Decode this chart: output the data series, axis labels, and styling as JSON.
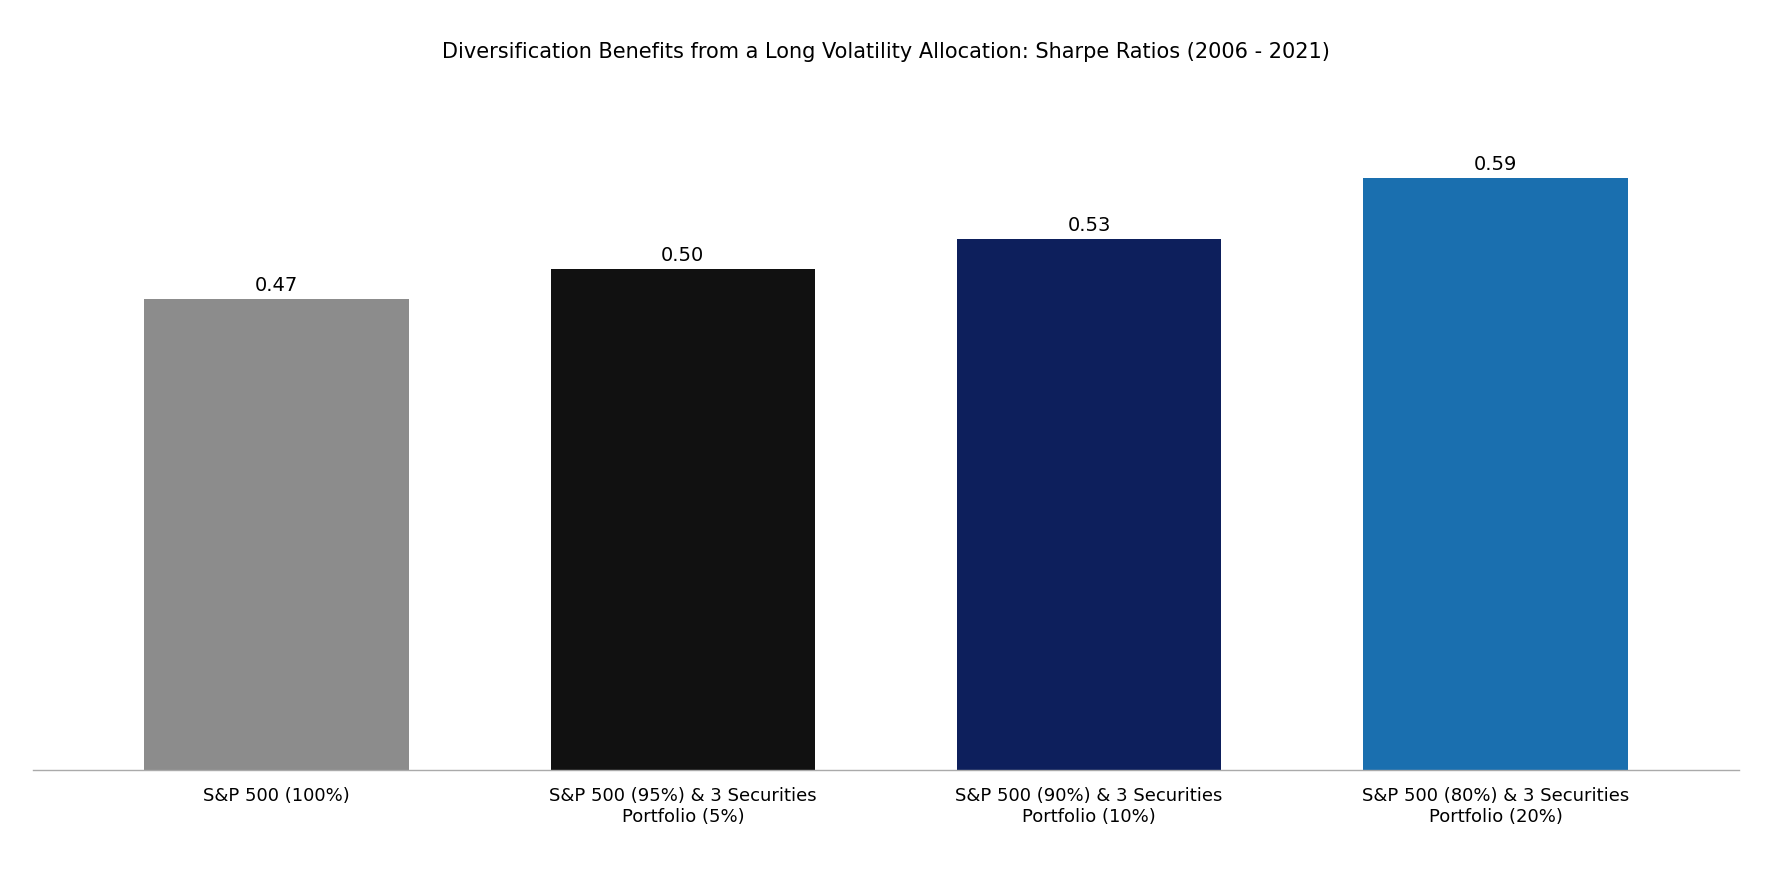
{
  "title": "Diversification Benefits from a Long Volatility Allocation: Sharpe Ratios (2006 - 2021)",
  "categories": [
    "S&P 500 (100%)",
    "S&P 500 (95%) & 3 Securities\nPortfolio (5%)",
    "S&P 500 (90%) & 3 Securities\nPortfolio (10%)",
    "S&P 500 (80%) & 3 Securities\nPortfolio (20%)"
  ],
  "values": [
    0.47,
    0.5,
    0.53,
    0.59
  ],
  "bar_colors": [
    "#8c8c8c",
    "#111111",
    "#0d1f5c",
    "#1a6faf"
  ],
  "value_labels": [
    "0.47",
    "0.50",
    "0.53",
    "0.59"
  ],
  "ylim": [
    0,
    0.68
  ],
  "title_fontsize": 15,
  "label_fontsize": 13,
  "value_fontsize": 14,
  "background_color": "#ffffff",
  "bar_width": 0.65
}
